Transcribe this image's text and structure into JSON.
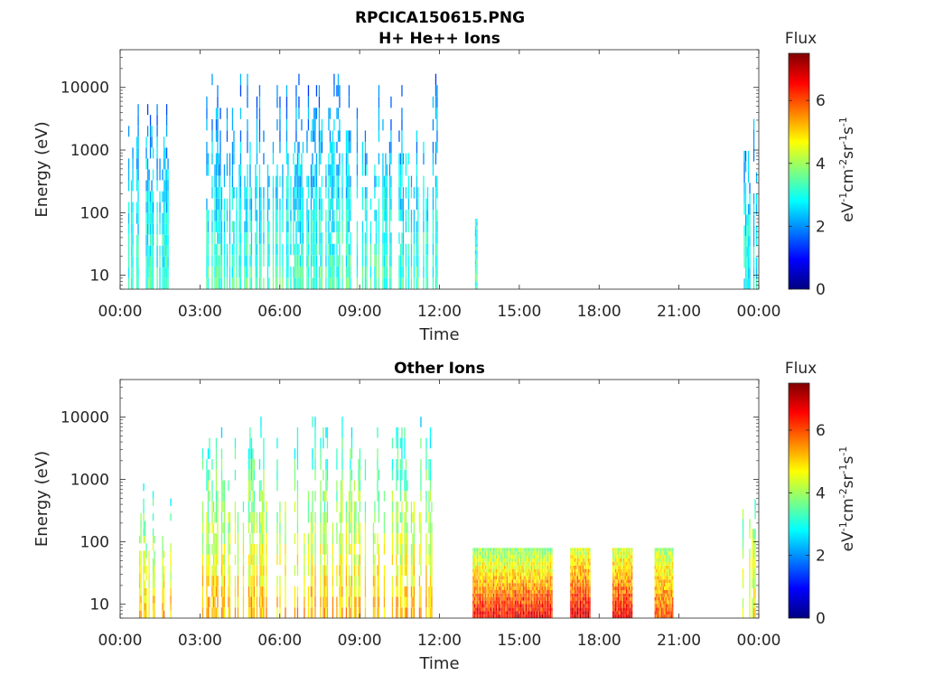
{
  "figure_title": "RPCICA150615.PNG",
  "chart_data": [
    {
      "type": "heatmap",
      "title": "H+ He++ Ions",
      "xlabel": "Time",
      "ylabel": "Energy (eV)",
      "yscale": "log",
      "xlim": [
        "00:00",
        "24:00"
      ],
      "ylim": [
        6,
        40000
      ],
      "xticks": [
        "00:00",
        "03:00",
        "06:00",
        "09:00",
        "12:00",
        "15:00",
        "18:00",
        "21:00",
        "00:00"
      ],
      "yticks": [
        "10",
        "100",
        "1000",
        "10000"
      ],
      "colorbar": {
        "title": "Flux",
        "label": "eV-1cm-2sr-1s-1",
        "range": [
          0,
          7.5
        ],
        "ticks": [
          "0",
          "2",
          "4",
          "6"
        ],
        "colormap": "jet",
        "colors": [
          "#00007f",
          "#0000ff",
          "#007fff",
          "#00ffff",
          "#7fff7f",
          "#ffff00",
          "#ff7f00",
          "#ff0000",
          "#7f0000"
        ]
      },
      "regions": [
        {
          "t_start": "00:15",
          "t_end": "01:55",
          "e_min": 6,
          "e_max": 18000,
          "flux_low_energy": 3.2,
          "flux_high_energy": 1.6,
          "coverage": 0.45
        },
        {
          "t_start": "03:05",
          "t_end": "11:55",
          "e_min": 6,
          "e_max": 25000,
          "flux_low_energy": 3.3,
          "flux_high_energy": 1.6,
          "coverage": 0.5
        },
        {
          "t_start": "13:20",
          "t_end": "13:25",
          "e_min": 6,
          "e_max": 80,
          "flux_low_energy": 3.3,
          "flux_high_energy": 3.0,
          "coverage": 1.0
        },
        {
          "t_start": "23:20",
          "t_end": "23:55",
          "e_min": 6,
          "e_max": 15000,
          "flux_low_energy": 3.0,
          "flux_high_energy": 1.6,
          "coverage": 0.5
        }
      ]
    },
    {
      "type": "heatmap",
      "title": "Other Ions",
      "xlabel": "Time",
      "ylabel": "Energy (eV)",
      "yscale": "log",
      "xlim": [
        "00:00",
        "24:00"
      ],
      "ylim": [
        6,
        40000
      ],
      "xticks": [
        "00:00",
        "03:00",
        "06:00",
        "09:00",
        "12:00",
        "15:00",
        "18:00",
        "21:00",
        "00:00"
      ],
      "yticks": [
        "10",
        "100",
        "1000",
        "10000"
      ],
      "colorbar": {
        "title": "Flux",
        "label": "eV-1cm-2sr-1s-1",
        "range": [
          0,
          7.5
        ],
        "ticks": [
          "0",
          "2",
          "4",
          "6"
        ],
        "colormap": "jet",
        "colors": [
          "#00007f",
          "#0000ff",
          "#007fff",
          "#00ffff",
          "#7fff7f",
          "#ffff00",
          "#ff7f00",
          "#ff0000",
          "#7f0000"
        ]
      },
      "regions": [
        {
          "t_start": "00:15",
          "t_end": "01:55",
          "e_min": 6,
          "e_max": 1500,
          "flux_low_energy": 5.2,
          "flux_high_energy": 2.6,
          "coverage": 0.45
        },
        {
          "t_start": "03:05",
          "t_end": "11:55",
          "e_min": 6,
          "e_max": 15000,
          "flux_low_energy": 5.2,
          "flux_high_energy": 2.6,
          "coverage": 0.45
        },
        {
          "t_start": "13:15",
          "t_end": "16:15",
          "e_min": 6,
          "e_max": 80,
          "flux_low_energy": 6.6,
          "flux_high_energy": 3.8,
          "coverage": 1.0
        },
        {
          "t_start": "16:55",
          "t_end": "17:40",
          "e_min": 6,
          "e_max": 80,
          "flux_low_energy": 6.8,
          "flux_high_energy": 4.2,
          "coverage": 1.0
        },
        {
          "t_start": "18:30",
          "t_end": "19:15",
          "e_min": 6,
          "e_max": 80,
          "flux_low_energy": 6.6,
          "flux_high_energy": 4.2,
          "coverage": 1.0
        },
        {
          "t_start": "20:05",
          "t_end": "20:45",
          "e_min": 6,
          "e_max": 80,
          "flux_low_energy": 6.0,
          "flux_high_energy": 4.0,
          "coverage": 1.0
        },
        {
          "t_start": "23:20",
          "t_end": "23:55",
          "e_min": 6,
          "e_max": 9000,
          "flux_low_energy": 4.8,
          "flux_high_energy": 2.6,
          "coverage": 0.5
        }
      ]
    }
  ]
}
